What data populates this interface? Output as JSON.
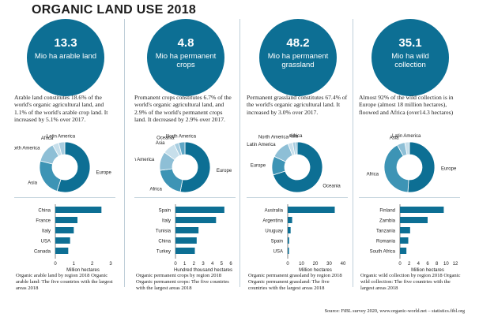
{
  "title": "ORGANIC LAND USE 2018",
  "source": "Source: FiBL survey 2020, www.organic-world.net – statistics.fibl.org",
  "colors": {
    "dark": "#0d6f94",
    "mid": "#3d94b5",
    "light": "#8ebfd6",
    "pale": "#c7dfeb",
    "panel": "#e9f1f6"
  },
  "columns": [
    {
      "value": "13.3",
      "unit": "Mio ha arable land",
      "desc": "Arable land constitutes 18.6% of the world's organic agricultural land, and 1.1% of the world's arable crop land. It increased by 5.1% over 2017.",
      "caption": "Organic arable land by region 2018 Organic arable land: The five countries with the largest areas 2018",
      "bar_xlabel": "Million hectares"
    },
    {
      "value": "4.8",
      "unit": "Mio ha permanent crops",
      "desc": "Promanent crops constitutes 6.7% of the world's organic agricultural land, and 2.9% of the world's permanent crops land. It decreased by 2.9% over 2017.",
      "caption": "Organic permanent crops by region 2018 Organic permanent crops: The five countries with the largest areas 2018",
      "bar_xlabel": "Hundred thousand hectares"
    },
    {
      "value": "48.2",
      "unit": "Mio ha permanent grassland",
      "desc": "Permanent grassland constitutes 67.4% of the world's organic agricultural land. It increased by 3.0% over 2017.",
      "caption": "Organic permanent grassland by region 2018 Organic permanent grassland: The five countries with the largest areas 2018",
      "bar_xlabel": "Million hectares"
    },
    {
      "value": "35.1",
      "unit": "Mio ha wild collection",
      "desc": "Almost 92% of the wild collection is in Europe (almost 18 million hectares), floowed and Africa (over14.3 hectares)",
      "caption": "Organic wild collection by region 2018 Organic wild collection: The five countries with the largest areas 2018",
      "bar_xlabel": "Million hectares"
    }
  ],
  "chart_data": [
    {
      "type": "pie",
      "title": "Organic arable land by region 2018",
      "categories": [
        "Europe",
        "Asia",
        "North America",
        "Africa",
        "Latin America"
      ],
      "values": [
        55,
        24,
        13,
        4,
        4
      ]
    },
    {
      "type": "bar",
      "title": "Organic arable land: The five countries with the largest areas 2018",
      "categories": [
        "China",
        "France",
        "Italy",
        "USA",
        "Canada"
      ],
      "values": [
        2.5,
        1.2,
        1.0,
        0.8,
        0.7
      ],
      "xlabel": "Million hectares",
      "xticks": [
        "0",
        "1",
        "2",
        "3"
      ],
      "xlim": [
        0,
        3
      ]
    },
    {
      "type": "pie",
      "title": "Organic permanent crops by region 2018",
      "categories": [
        "Europe",
        "Africa",
        "Latin America",
        "Asia",
        "Oceania",
        "North America"
      ],
      "values": [
        53,
        20,
        12,
        8,
        3,
        4
      ]
    },
    {
      "type": "bar",
      "title": "Organic permanent crops: The five countries with the largest areas 2018",
      "categories": [
        "Spain",
        "Italy",
        "Tunisia",
        "China",
        "Turkey"
      ],
      "values": [
        5.3,
        4.4,
        2.5,
        2.3,
        2.1
      ],
      "xlabel": "Hundred thousand hectares",
      "xticks": [
        "0",
        "1",
        "2",
        "3",
        "4",
        "5",
        "6"
      ],
      "xlim": [
        0,
        6
      ]
    },
    {
      "type": "pie",
      "title": "Organic permanent grassland by region 2018",
      "categories": [
        "Oceania",
        "Europe",
        "Latin America",
        "North America",
        "Asia",
        "Africa"
      ],
      "values": [
        70,
        12,
        12,
        3,
        2,
        1
      ]
    },
    {
      "type": "bar",
      "title": "Organic permanent grassland: The five countries with the largest areas 2018",
      "categories": [
        "Australia",
        "Argentina",
        "Uruguay",
        "Spain",
        "USA"
      ],
      "values": [
        34,
        3.2,
        2.1,
        1.0,
        0.9
      ],
      "xlabel": "Million hectares",
      "xticks": [
        "0",
        "10",
        "20",
        "30",
        "40"
      ],
      "xlim": [
        0,
        40
      ]
    },
    {
      "type": "pie",
      "title": "Organic wild collection by region 2018",
      "categories": [
        "Europe",
        "Africa",
        "Asia",
        "Latin America"
      ],
      "values": [
        51,
        41,
        5,
        3
      ]
    },
    {
      "type": "bar",
      "title": "Organic wild collection: The five countries with the largest areas 2018",
      "categories": [
        "Finland",
        "Zambia",
        "Tanzania",
        "Romania",
        "South Africa"
      ],
      "values": [
        9.5,
        6.0,
        2.2,
        1.8,
        1.4
      ],
      "xlabel": "Million hectares",
      "xticks": [
        "0",
        "2",
        "4",
        "6",
        "8",
        "10",
        "12"
      ],
      "xlim": [
        0,
        12
      ]
    }
  ]
}
